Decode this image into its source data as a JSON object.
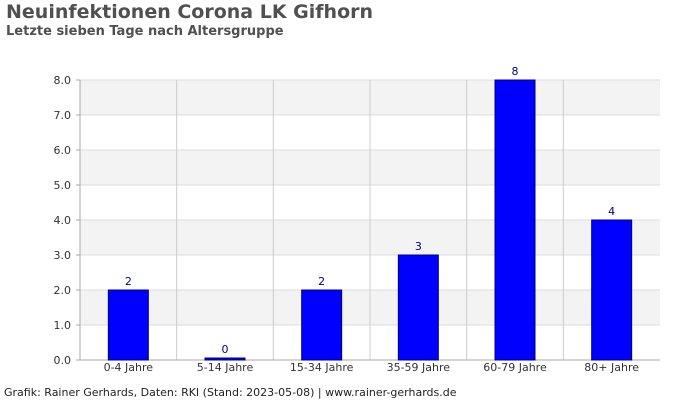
{
  "title": "Neuinfektionen Corona LK Gifhorn",
  "subtitle": "Letzte sieben Tage nach Altersgruppe",
  "footer": "Grafik: Rainer Gerhards, Daten: RKI (Stand: 2023-05-08) | www.rainer-gerhards.de",
  "colors": {
    "bar": "#0000ff",
    "bar_border": "#00007a",
    "band": "#f3f3f3",
    "grid": "#dddddd",
    "axis": "#aaaaaa"
  },
  "chart_data": {
    "type": "bar",
    "title": "Neuinfektionen Corona LK Gifhorn",
    "subtitle": "Letzte sieben Tage nach Altersgruppe",
    "categories": [
      "0-4 Jahre",
      "5-14 Jahre",
      "15-34 Jahre",
      "35-59 Jahre",
      "60-79 Jahre",
      "80+ Jahre"
    ],
    "values": [
      2,
      0,
      2,
      3,
      8,
      4
    ],
    "data_labels": [
      "2",
      "0",
      "2",
      "3",
      "8",
      "4"
    ],
    "yticks": [
      "0.0",
      "1.0",
      "2.0",
      "3.0",
      "4.0",
      "5.0",
      "6.0",
      "7.0",
      "8.0"
    ],
    "ylim": [
      0,
      8
    ],
    "xlabel": "",
    "ylabel": "",
    "grid": true,
    "legend": "none"
  }
}
